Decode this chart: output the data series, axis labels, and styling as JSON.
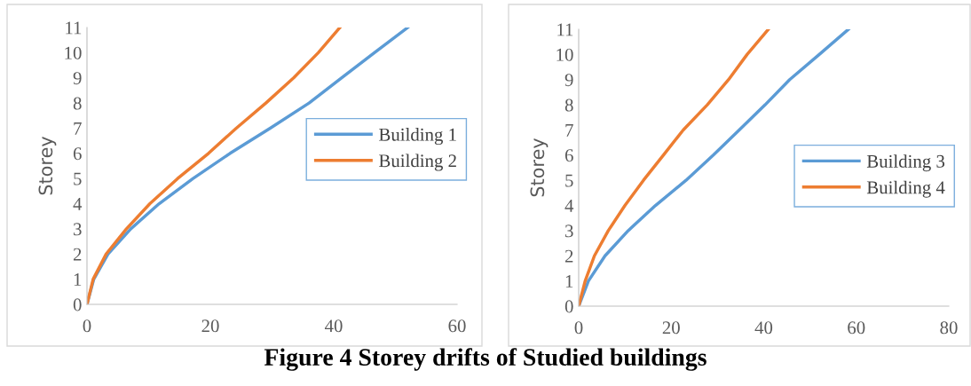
{
  "chart_data": [
    {
      "type": "line",
      "ylabel": "Storey",
      "xlim": [
        0,
        60
      ],
      "xticks": [
        0,
        20,
        40,
        60
      ],
      "ylim": [
        0,
        11
      ],
      "yticks": [
        0,
        1,
        2,
        3,
        4,
        5,
        6,
        7,
        8,
        9,
        10,
        11
      ],
      "grid": false,
      "legend": "right",
      "marker": "none",
      "line_style": "solid",
      "annotations": [
        "Figure 4 Storey drifts of Studied buildings"
      ],
      "series": [
        {
          "name": "Building 1",
          "color": "#5b9bd5",
          "x": [
            0,
            1.1,
            3.4,
            7.1,
            11.7,
            17.2,
            23.2,
            29.7,
            36,
            41.3,
            46.6,
            52
          ],
          "values": [
            0,
            1,
            2,
            3,
            4,
            5,
            6,
            7,
            8,
            9,
            10,
            11
          ]
        },
        {
          "name": "Building 2",
          "color": "#ed7d31",
          "x": [
            0,
            1.0,
            3.1,
            6.4,
            10.2,
            14.7,
            19.7,
            24.2,
            29,
            33.5,
            37.5,
            41
          ],
          "values": [
            0,
            1,
            2,
            3,
            4,
            5,
            6,
            7,
            8,
            9,
            10,
            11
          ]
        }
      ]
    },
    {
      "type": "line",
      "ylabel": "Storey",
      "xlim": [
        0,
        80
      ],
      "xticks": [
        0,
        20,
        40,
        60,
        80
      ],
      "ylim": [
        0,
        11
      ],
      "yticks": [
        0,
        1,
        2,
        3,
        4,
        5,
        6,
        7,
        8,
        9,
        10,
        11
      ],
      "grid": false,
      "legend": "right",
      "marker": "none",
      "line_style": "solid",
      "series": [
        {
          "name": "Building 3",
          "color": "#5b9bd5",
          "x": [
            0,
            2.1,
            5.7,
            10.7,
            16.6,
            23.2,
            29.1,
            34.7,
            40.3,
            45.6,
            52,
            58.3
          ],
          "values": [
            0,
            1,
            2,
            3,
            4,
            5,
            6,
            7,
            8,
            9,
            10,
            11
          ]
        },
        {
          "name": "Building 4",
          "color": "#ed7d31",
          "x": [
            0,
            1.4,
            3.4,
            6.4,
            10,
            14,
            18.3,
            22.6,
            27.8,
            32.4,
            36.4,
            41
          ],
          "values": [
            0,
            1,
            2,
            3,
            4,
            5,
            6,
            7,
            8,
            9,
            10,
            11
          ]
        }
      ]
    }
  ]
}
